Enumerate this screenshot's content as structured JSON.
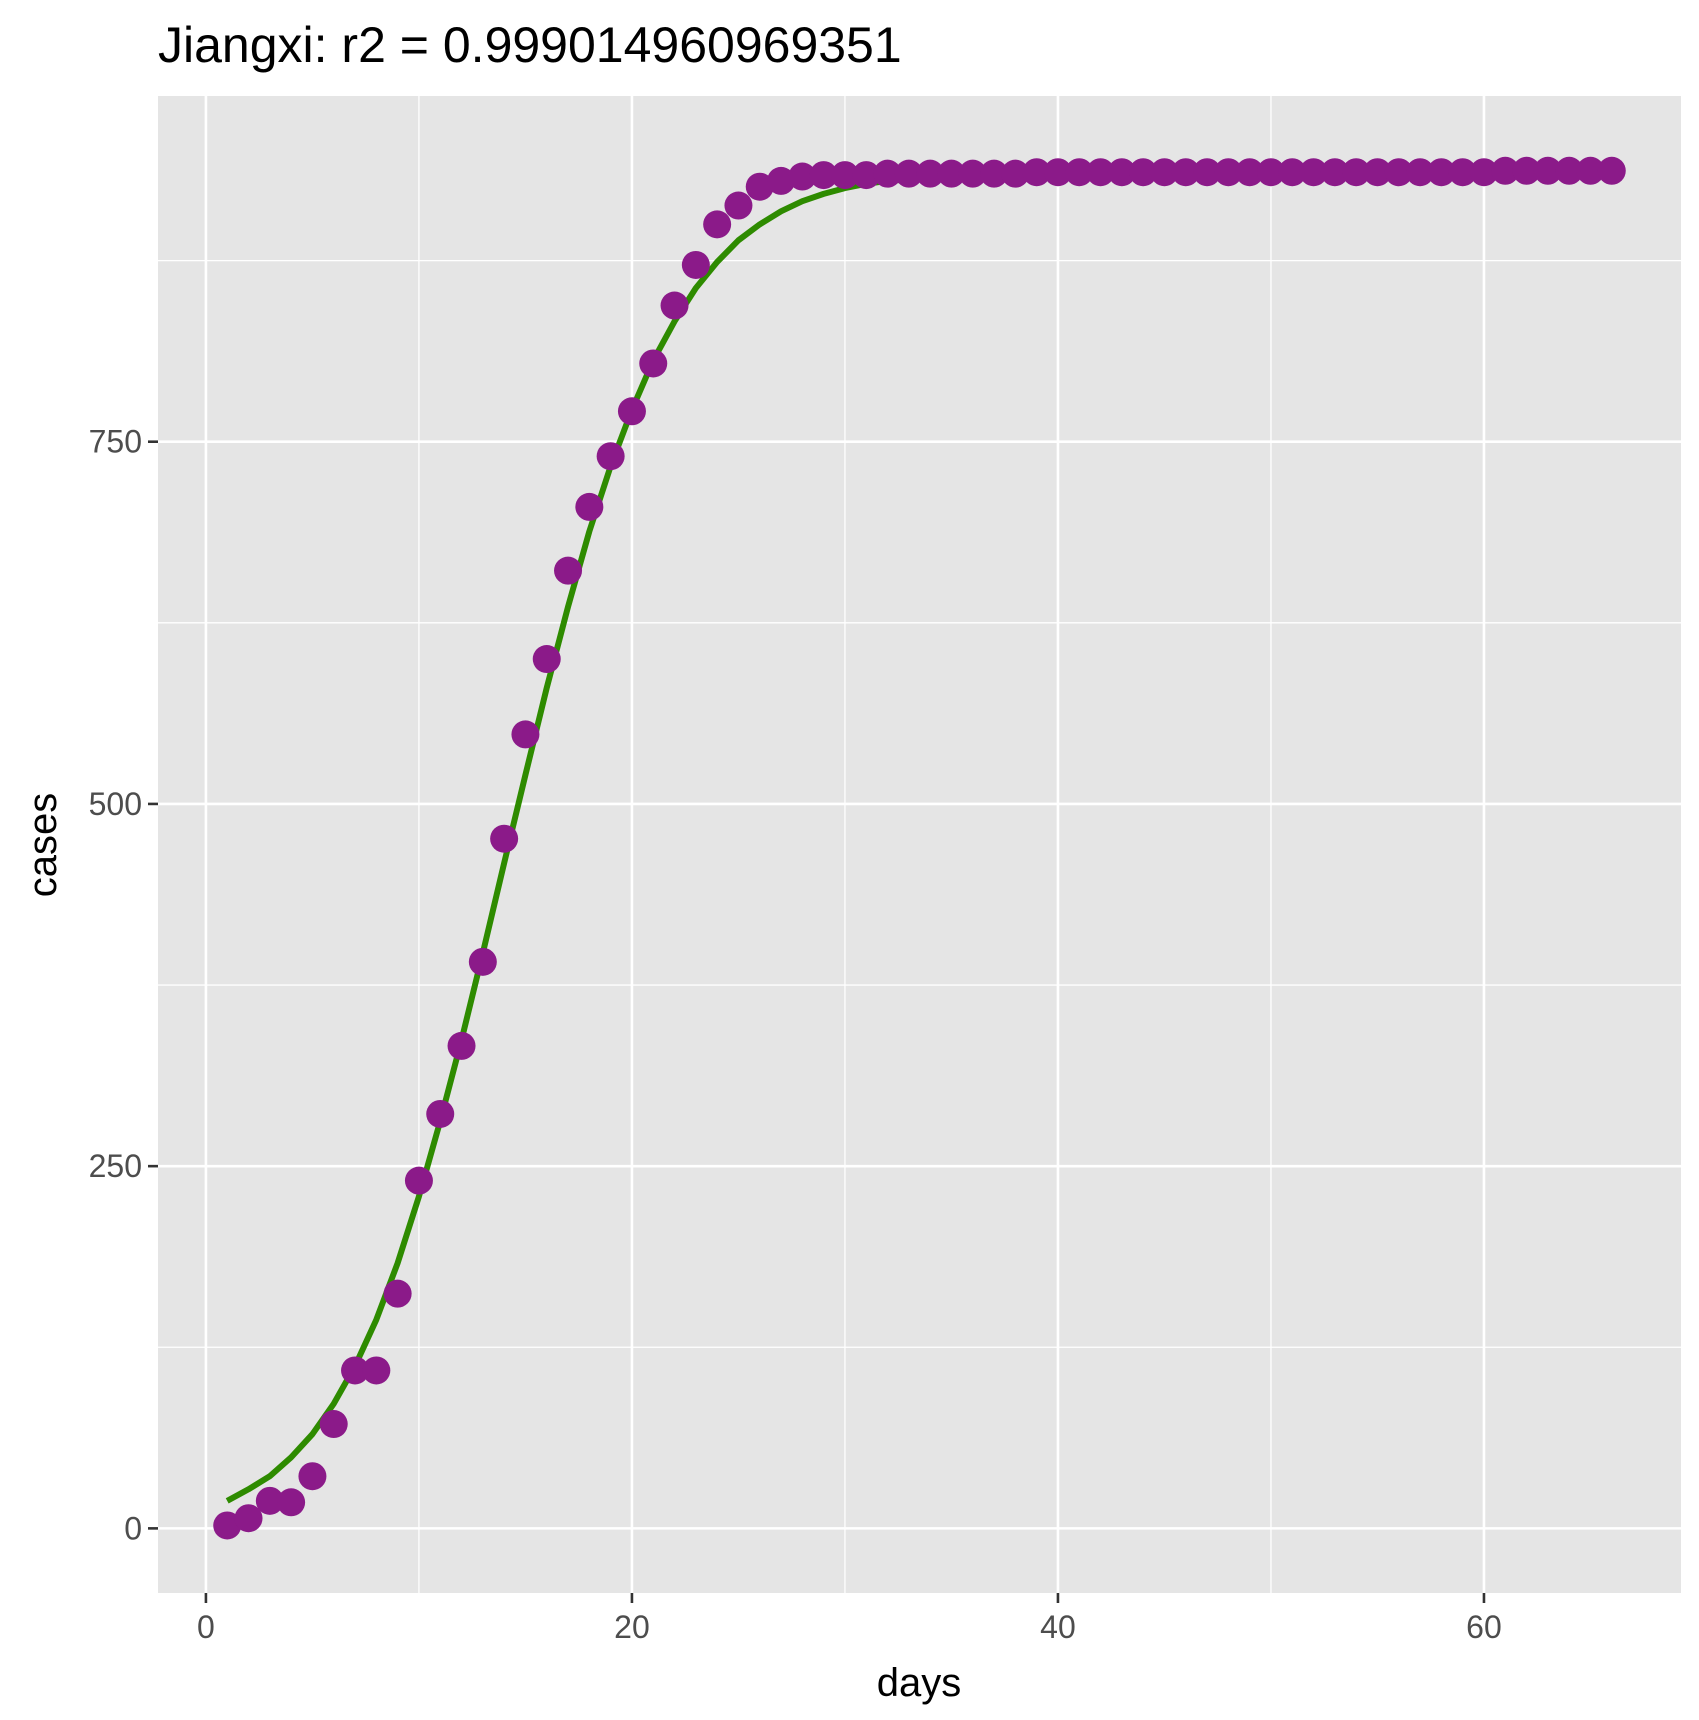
{
  "chart_data": {
    "type": "scatter",
    "title": "Jiangxi: r2 = 0.999014960969351",
    "xlabel": "days",
    "ylabel": "cases",
    "xlim": [
      -2.25,
      69.25
    ],
    "ylim": [
      -44.6,
      988.6
    ],
    "x_ticks": [
      0,
      20,
      40,
      60
    ],
    "x_tick_labels": [
      "0",
      "20",
      "40",
      "60"
    ],
    "x_minor_ticks": [
      10,
      30,
      50
    ],
    "y_ticks": [
      0,
      250,
      500,
      750
    ],
    "y_tick_labels": [
      "0",
      "250",
      "500",
      "750"
    ],
    "y_minor_ticks": [
      125,
      375,
      625,
      875
    ],
    "grid": true,
    "legend": "none",
    "series": [
      {
        "kind": "points",
        "color": "#8b1a89",
        "x": [
          1,
          2,
          3,
          4,
          5,
          6,
          7,
          8,
          9,
          10,
          11,
          12,
          13,
          14,
          15,
          16,
          17,
          18,
          19,
          20,
          21,
          22,
          23,
          24,
          25,
          26,
          27,
          28,
          29,
          30,
          31,
          32,
          33,
          34,
          35,
          36,
          37,
          38,
          39,
          40,
          41,
          42,
          43,
          44,
          45,
          46,
          47,
          48,
          49,
          50,
          51,
          52,
          53,
          54,
          55,
          56,
          57,
          58,
          59,
          60,
          61,
          62,
          63,
          64,
          65,
          66
        ],
        "y": [
          2,
          7,
          19,
          18,
          36,
          72,
          109,
          109,
          162,
          240,
          286,
          333,
          391,
          476,
          548,
          600,
          661,
          705,
          740,
          771,
          804,
          844,
          872,
          900,
          913,
          926,
          930,
          933,
          934,
          934,
          934,
          935,
          935,
          935,
          935,
          935,
          935,
          935,
          936,
          936,
          936,
          936,
          936,
          936,
          936,
          936,
          936,
          936,
          936,
          936,
          936,
          936,
          936,
          936,
          936,
          936,
          936,
          936,
          936,
          936,
          937,
          937,
          937,
          937,
          937,
          937
        ]
      },
      {
        "kind": "line",
        "color": "#2e8b00",
        "x": [
          1,
          2,
          3,
          4,
          5,
          6,
          7,
          8,
          9,
          10,
          11,
          12,
          13,
          14,
          15,
          16,
          17,
          18,
          19,
          20,
          21,
          22,
          23,
          24,
          25,
          26,
          27,
          28,
          29,
          30,
          31,
          32,
          33,
          34,
          35,
          36,
          37,
          38,
          39,
          40,
          41,
          42,
          43,
          44,
          45,
          46,
          47,
          48,
          49,
          50,
          51,
          52,
          53,
          54,
          55,
          56,
          57,
          58,
          59,
          60,
          61,
          62,
          63,
          64,
          65,
          66
        ],
        "y": [
          19,
          27,
          36,
          49,
          65,
          86,
          112,
          144,
          183,
          229,
          281,
          337,
          397,
          459,
          520,
          580,
          636,
          688,
          733,
          772,
          806,
          833,
          856,
          874,
          889,
          900,
          909,
          916,
          921,
          925,
          928,
          930,
          931,
          932,
          933,
          934,
          934,
          935,
          935,
          935,
          935,
          936,
          936,
          936,
          936,
          936,
          936,
          936,
          936,
          936,
          936,
          936,
          936,
          936,
          936,
          936,
          936,
          936,
          936,
          936,
          936,
          936,
          936,
          936,
          936,
          936
        ]
      }
    ]
  },
  "style": {
    "panel_background": "#e5e5e5",
    "grid_color": "#ffffff",
    "tick_color": "#333333",
    "tick_label_color": "#4d4d4d",
    "point_color": "#8b1a89",
    "line_color": "#2e8b00"
  }
}
